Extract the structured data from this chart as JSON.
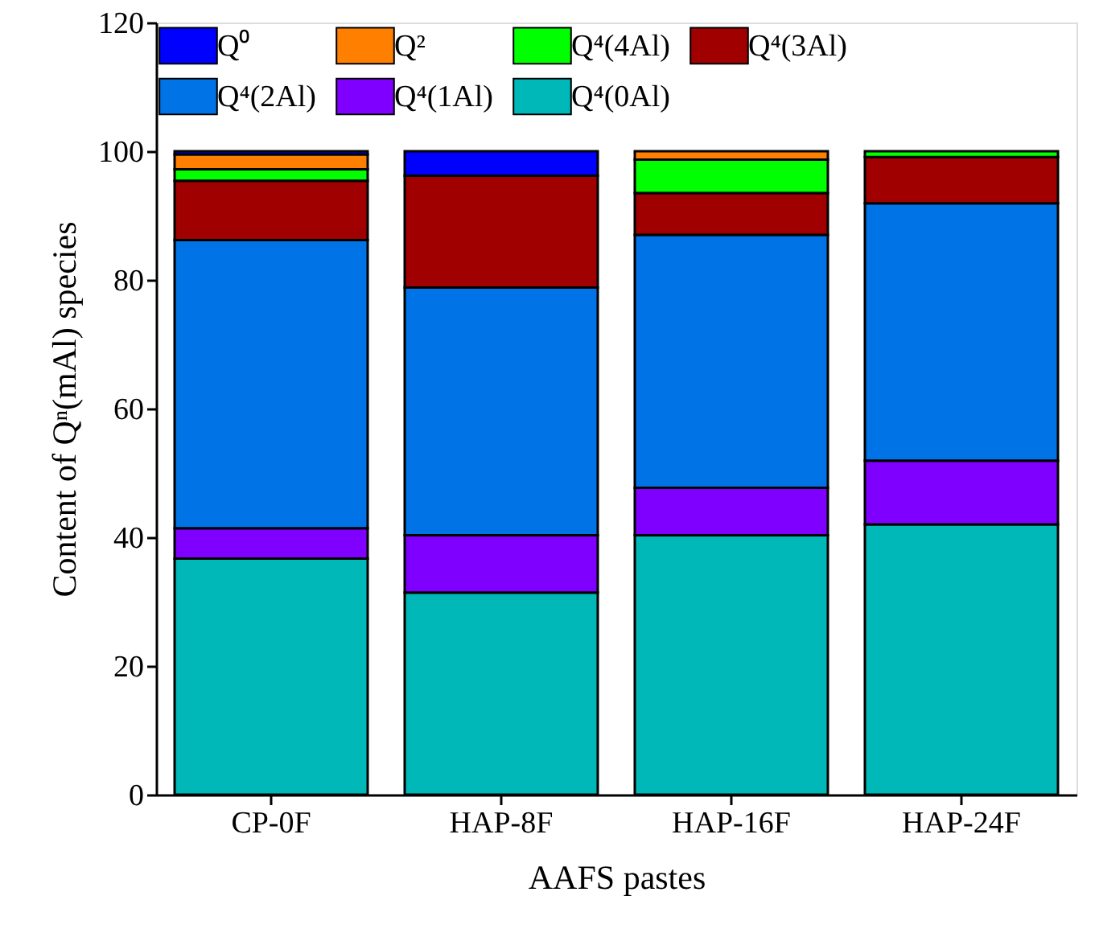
{
  "chart_data": {
    "type": "bar",
    "stacked": true,
    "xlabel": "AAFS pastes",
    "ylabel": "Content of Qⁿ(mAl) species",
    "categories": [
      "CP-0F",
      "HAP-8F",
      "HAP-16F",
      "HAP-24F"
    ],
    "series": [
      {
        "name": "Q⁴(0Al)",
        "color": "#00b8b8",
        "values": [
          36.7,
          31.4,
          40.3,
          42.0
        ]
      },
      {
        "name": "Q⁴(1Al)",
        "color": "#8000ff",
        "values": [
          4.7,
          8.9,
          7.4,
          9.9
        ]
      },
      {
        "name": "Q⁴(2Al)",
        "color": "#0073e6",
        "values": [
          44.8,
          38.5,
          39.3,
          40.0
        ]
      },
      {
        "name": "Q⁴(3Al)",
        "color": "#a00000",
        "values": [
          9.2,
          17.4,
          6.5,
          7.2
        ]
      },
      {
        "name": "Q⁴(4Al)",
        "color": "#00ff00",
        "values": [
          1.8,
          0,
          5.2,
          0.9
        ]
      },
      {
        "name": "Q²",
        "color": "#ff8000",
        "values": [
          2.3,
          0,
          1.3,
          0
        ]
      },
      {
        "name": "Q⁰",
        "color": "#0000ff",
        "values": [
          0.5,
          3.8,
          0,
          0
        ]
      }
    ],
    "ylim": [
      0,
      120
    ],
    "yticks": [
      0,
      20,
      40,
      60,
      80,
      100,
      120
    ],
    "grid": false,
    "legend": "top"
  }
}
